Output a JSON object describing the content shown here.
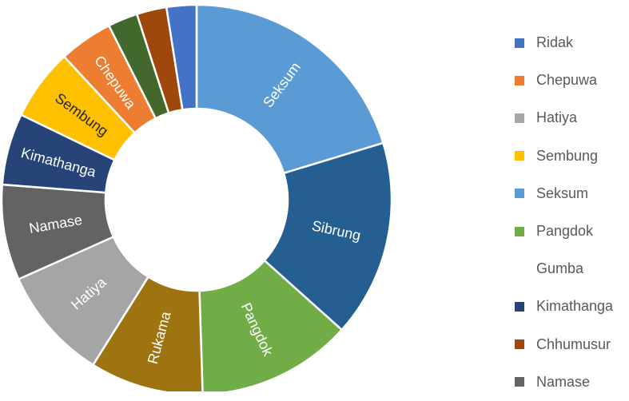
{
  "chart_data": {
    "type": "pie",
    "donut": true,
    "slices": [
      {
        "label": "Seksum",
        "value": 20.5,
        "color": "#5B9BD5",
        "text_color": "#ffffff"
      },
      {
        "label": "Sibrung",
        "value": 16.5,
        "color": "#255E91",
        "text_color": "#ffffff"
      },
      {
        "label": "Pangdok",
        "value": 13.0,
        "color": "#70AD47",
        "text_color": "#ffffff"
      },
      {
        "label": "Rukama",
        "value": 9.5,
        "color": "#9E7410",
        "text_color": "#ffffff"
      },
      {
        "label": "Hatiya",
        "value": 9.5,
        "color": "#A5A5A5",
        "text_color": "#ffffff"
      },
      {
        "label": "Namase",
        "value": 8.0,
        "color": "#636363",
        "text_color": "#ffffff"
      },
      {
        "label": "Kimathanga",
        "value": 6.0,
        "color": "#264478",
        "text_color": "#ffffff"
      },
      {
        "label": "Sembung",
        "value": 6.0,
        "color": "#FFC000",
        "text_color": "#262626"
      },
      {
        "label": "Chepuwa",
        "value": 4.5,
        "color": "#ED7D31",
        "text_color": "#ffffff"
      },
      {
        "label": "",
        "value": 2.5,
        "color": "#43682B",
        "text_color": "#ffffff"
      },
      {
        "label": "",
        "value": 2.5,
        "color": "#9E480E",
        "text_color": "#ffffff"
      },
      {
        "label": "",
        "value": 2.5,
        "color": "#4472C4",
        "text_color": "#ffffff"
      }
    ],
    "legend": [
      {
        "label": "Ridak",
        "color": "#4472C4"
      },
      {
        "label": "Chepuwa",
        "color": "#ED7D31"
      },
      {
        "label": "Hatiya",
        "color": "#A5A5A5"
      },
      {
        "label": "Sembung",
        "color": "#FFC000"
      },
      {
        "label": "Seksum",
        "color": "#5B9BD5"
      },
      {
        "label": "Pangdok",
        "color": "#70AD47"
      },
      {
        "label": "Gumba",
        "color": null
      },
      {
        "label": "Kimathanga",
        "color": "#264478"
      },
      {
        "label": "Chhumusur",
        "color": "#9E480E"
      },
      {
        "label": "Namase",
        "color": "#636363"
      }
    ],
    "legend_position": "right"
  }
}
